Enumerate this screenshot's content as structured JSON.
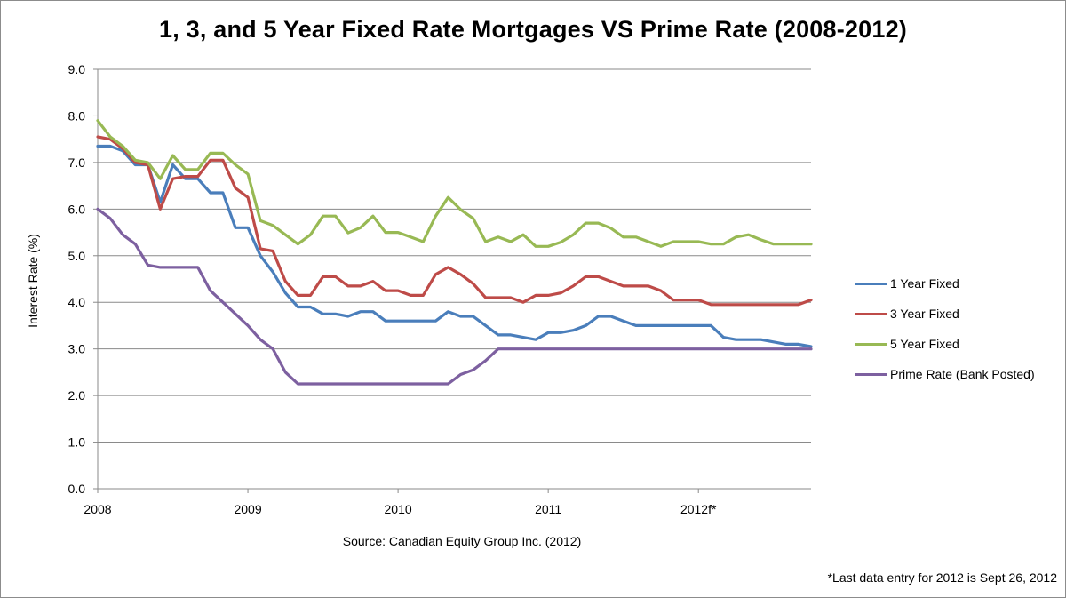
{
  "chart_data": {
    "type": "line",
    "title": "1, 3, and 5 Year Fixed Rate Mortgages VS Prime Rate (2008-2012)",
    "xlabel": "",
    "ylabel": "Interest Rate (%)",
    "ylim": [
      0,
      9
    ],
    "y_ticks": [
      "0.0",
      "1.0",
      "2.0",
      "3.0",
      "4.0",
      "5.0",
      "6.0",
      "7.0",
      "8.0",
      "9.0"
    ],
    "x_tick_labels": [
      {
        "label": "2008",
        "index": 0
      },
      {
        "label": "2009",
        "index": 12
      },
      {
        "label": "2010",
        "index": 24
      },
      {
        "label": "2011",
        "index": 36
      },
      {
        "label": "2012f*",
        "index": 48
      }
    ],
    "point_count": 58,
    "grid": "horizontal",
    "legend_position": "right",
    "series": [
      {
        "name": "1 Year Fixed",
        "color": "#4a7ebb",
        "values": [
          7.35,
          7.35,
          7.25,
          6.95,
          6.95,
          6.15,
          6.95,
          6.65,
          6.65,
          6.35,
          6.35,
          5.6,
          5.6,
          5.0,
          4.65,
          4.2,
          3.9,
          3.9,
          3.75,
          3.75,
          3.7,
          3.8,
          3.8,
          3.6,
          3.6,
          3.6,
          3.6,
          3.6,
          3.8,
          3.7,
          3.7,
          3.5,
          3.3,
          3.3,
          3.25,
          3.2,
          3.35,
          3.35,
          3.4,
          3.5,
          3.7,
          3.7,
          3.6,
          3.5,
          3.5,
          3.5,
          3.5,
          3.5,
          3.5,
          3.5,
          3.25,
          3.2,
          3.2,
          3.2,
          3.15,
          3.1,
          3.1,
          3.05
        ]
      },
      {
        "name": "3 Year Fixed",
        "color": "#be4b48",
        "values": [
          7.55,
          7.5,
          7.3,
          7.0,
          6.95,
          6.0,
          6.65,
          6.7,
          6.7,
          7.05,
          7.05,
          6.45,
          6.25,
          5.15,
          5.1,
          4.45,
          4.15,
          4.15,
          4.55,
          4.55,
          4.35,
          4.35,
          4.45,
          4.25,
          4.25,
          4.15,
          4.15,
          4.6,
          4.75,
          4.6,
          4.4,
          4.1,
          4.1,
          4.1,
          4.0,
          4.15,
          4.15,
          4.2,
          4.35,
          4.55,
          4.55,
          4.45,
          4.35,
          4.35,
          4.35,
          4.25,
          4.05,
          4.05,
          4.05,
          3.95,
          3.95,
          3.95,
          3.95,
          3.95,
          3.95,
          3.95,
          3.95,
          4.05
        ]
      },
      {
        "name": "5 Year Fixed",
        "color": "#98b954",
        "values": [
          7.9,
          7.55,
          7.35,
          7.05,
          7.0,
          6.65,
          7.15,
          6.85,
          6.85,
          7.2,
          7.2,
          6.95,
          6.75,
          5.75,
          5.65,
          5.45,
          5.25,
          5.45,
          5.85,
          5.85,
          5.49,
          5.6,
          5.85,
          5.5,
          5.5,
          5.4,
          5.3,
          5.85,
          6.25,
          5.99,
          5.8,
          5.3,
          5.4,
          5.3,
          5.45,
          5.2,
          5.2,
          5.29,
          5.45,
          5.7,
          5.7,
          5.59,
          5.4,
          5.4,
          5.3,
          5.2,
          5.3,
          5.3,
          5.3,
          5.25,
          5.25,
          5.4,
          5.45,
          5.34,
          5.25,
          5.25,
          5.25,
          5.25
        ]
      },
      {
        "name": "Prime Rate (Bank Posted)",
        "color": "#7d60a0",
        "values": [
          6.0,
          5.8,
          5.45,
          5.25,
          4.8,
          4.75,
          4.75,
          4.75,
          4.75,
          4.25,
          4.0,
          3.75,
          3.5,
          3.2,
          3.0,
          2.5,
          2.25,
          2.25,
          2.25,
          2.25,
          2.25,
          2.25,
          2.25,
          2.25,
          2.25,
          2.25,
          2.25,
          2.25,
          2.25,
          2.45,
          2.55,
          2.75,
          3.0,
          3.0,
          3.0,
          3.0,
          3.0,
          3.0,
          3.0,
          3.0,
          3.0,
          3.0,
          3.0,
          3.0,
          3.0,
          3.0,
          3.0,
          3.0,
          3.0,
          3.0,
          3.0,
          3.0,
          3.0,
          3.0,
          3.0,
          3.0,
          3.0,
          3.0
        ]
      }
    ]
  },
  "source_note": "Source: Canadian Equity Group Inc. (2012)",
  "footnote": "*Last data entry for 2012 is Sept 26, 2012",
  "colors": {
    "gridline": "#8a8a8a",
    "axis": "#8a8a8a"
  }
}
